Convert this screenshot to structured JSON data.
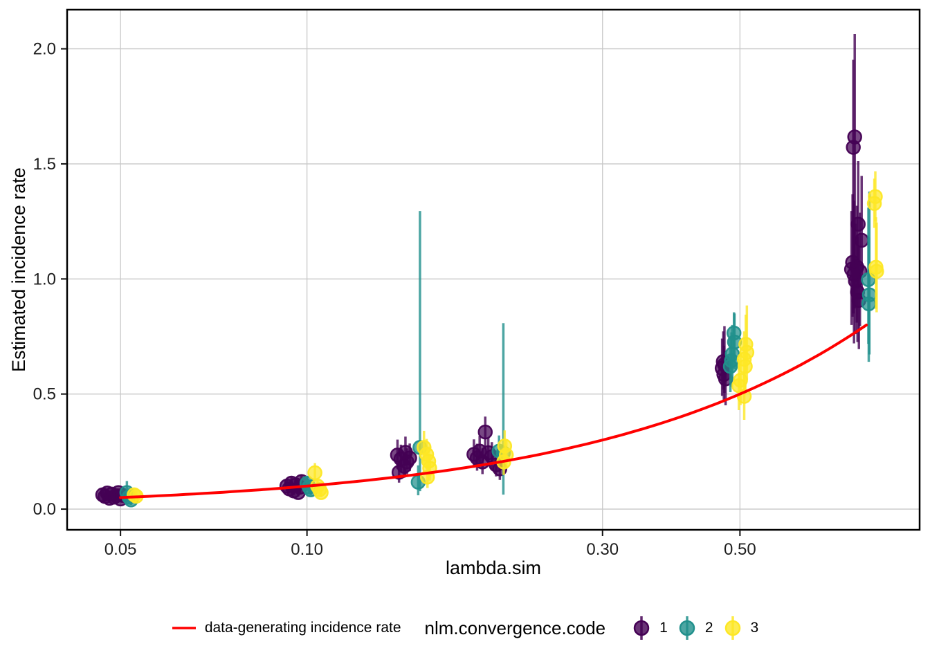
{
  "chart_data": {
    "type": "scatter",
    "subtype": "pointrange",
    "title": "",
    "xlabel": "lambda.sim",
    "ylabel": "Estimated incidence rate",
    "legend_title": "nlm.convergence.code",
    "x_scale": "log10",
    "x_domain": [
      0.041,
      0.975
    ],
    "y_domain": [
      -0.09,
      2.17
    ],
    "x_ticks": [
      0.05,
      0.1,
      0.3,
      0.5
    ],
    "x_tick_labels": [
      "0.05",
      "0.10",
      "0.30",
      "0.50"
    ],
    "y_ticks": [
      0,
      0.5,
      1,
      1.5,
      2
    ],
    "y_tick_labels": [
      "0.0",
      "0.5",
      "1.0",
      "1.5",
      "2.0"
    ],
    "grid": true,
    "legend_position": "bottom",
    "colors": {
      "background": "#ffffff",
      "grid": "#c8c8c8",
      "panel_border": "#000000",
      "axis_text": "#1d1d1d",
      "reference_line": "#ff0000"
    },
    "reference_line": {
      "label": "data-generating incidence rate",
      "color": "#ff0000",
      "relation": "identity (estimated = lambda.sim)",
      "x_start": 0.05,
      "x_end": 0.8
    },
    "lambda_groups": [
      0.05,
      0.1,
      0.15,
      0.2,
      0.5,
      0.8
    ],
    "point_format": [
      "lambda",
      "estimate",
      "ci_low",
      "ci_high"
    ],
    "series": [
      {
        "name": "1",
        "color": "#440154",
        "points": [
          [
            0.0468,
            0.062,
            0.048,
            0.078
          ],
          [
            0.0472,
            0.055,
            0.042,
            0.07
          ],
          [
            0.0476,
            0.07,
            0.055,
            0.087
          ],
          [
            0.048,
            0.047,
            0.035,
            0.061
          ],
          [
            0.0484,
            0.065,
            0.05,
            0.082
          ],
          [
            0.0488,
            0.052,
            0.04,
            0.066
          ],
          [
            0.0492,
            0.058,
            0.045,
            0.073
          ],
          [
            0.0496,
            0.072,
            0.056,
            0.09
          ],
          [
            0.05,
            0.044,
            0.033,
            0.057
          ],
          [
            0.0504,
            0.06,
            0.046,
            0.076
          ],
          [
            0.0928,
            0.1,
            0.078,
            0.126
          ],
          [
            0.0936,
            0.088,
            0.068,
            0.112
          ],
          [
            0.0944,
            0.113,
            0.089,
            0.14
          ],
          [
            0.0952,
            0.079,
            0.061,
            0.101
          ],
          [
            0.096,
            0.105,
            0.082,
            0.131
          ],
          [
            0.0968,
            0.072,
            0.055,
            0.092
          ],
          [
            0.0974,
            0.095,
            0.074,
            0.119
          ],
          [
            0.098,
            0.12,
            0.095,
            0.148
          ],
          [
            0.14,
            0.235,
            0.175,
            0.302
          ],
          [
            0.1418,
            0.218,
            0.162,
            0.28
          ],
          [
            0.1435,
            0.186,
            0.136,
            0.243
          ],
          [
            0.1408,
            0.16,
            0.115,
            0.212
          ],
          [
            0.145,
            0.205,
            0.152,
            0.264
          ],
          [
            0.1465,
            0.222,
            0.165,
            0.285
          ],
          [
            0.1442,
            0.247,
            0.186,
            0.315
          ],
          [
            0.194,
            0.335,
            0.262,
            0.402
          ],
          [
            0.186,
            0.238,
            0.18,
            0.303
          ],
          [
            0.1882,
            0.222,
            0.167,
            0.284
          ],
          [
            0.19,
            0.252,
            0.193,
            0.318
          ],
          [
            0.192,
            0.205,
            0.152,
            0.264
          ],
          [
            0.1962,
            0.245,
            0.187,
            0.31
          ],
          [
            0.1988,
            0.228,
            0.172,
            0.291
          ],
          [
            0.202,
            0.192,
            0.142,
            0.249
          ],
          [
            0.2048,
            0.175,
            0.127,
            0.23
          ],
          [
            0.47,
            0.641,
            0.519,
            0.772
          ],
          [
            0.468,
            0.612,
            0.492,
            0.741
          ],
          [
            0.471,
            0.585,
            0.468,
            0.71
          ],
          [
            0.474,
            0.566,
            0.451,
            0.688
          ],
          [
            0.472,
            0.628,
            0.505,
            0.795
          ],
          [
            0.766,
            1.617,
            0.872,
            2.065
          ],
          [
            0.762,
            1.572,
            0.85,
            1.952
          ],
          [
            0.776,
            1.238,
            0.958,
            1.512
          ],
          [
            0.786,
            1.168,
            0.912,
            1.448
          ],
          [
            0.76,
            1.072,
            0.836,
            1.368
          ],
          [
            0.772,
            1.052,
            0.81,
            1.318
          ],
          [
            0.757,
            1.042,
            0.8,
            1.295
          ],
          [
            0.781,
            1.033,
            0.795,
            1.288
          ],
          [
            0.768,
            0.991,
            0.76,
            1.24
          ],
          [
            0.774,
            0.943,
            0.726,
            1.185
          ],
          [
            0.778,
            0.907,
            0.695,
            1.145
          ],
          [
            0.764,
            1.02,
            0.72,
            1.34
          ]
        ]
      },
      {
        "name": "2",
        "color": "#21908C",
        "points": [
          [
            0.0512,
            0.072,
            0.03,
            0.122
          ],
          [
            0.0516,
            0.052,
            0.024,
            0.09
          ],
          [
            0.052,
            0.04,
            0.018,
            0.072
          ],
          [
            0.1,
            0.112,
            0.085,
            0.145
          ],
          [
            0.1008,
            0.096,
            0.071,
            0.126
          ],
          [
            0.1014,
            0.084,
            0.061,
            0.112
          ],
          [
            0.1522,
            0.268,
            0.078,
            1.295
          ],
          [
            0.1512,
            0.117,
            0.06,
            0.19
          ],
          [
            0.2075,
            0.244,
            0.063,
            0.808
          ],
          [
            0.2042,
            0.252,
            0.19,
            0.32
          ],
          [
            0.489,
            0.765,
            0.64,
            0.855
          ],
          [
            0.49,
            0.726,
            0.608,
            0.85
          ],
          [
            0.486,
            0.674,
            0.558,
            0.8
          ],
          [
            0.4845,
            0.645,
            0.532,
            0.768
          ],
          [
            0.4825,
            0.62,
            0.508,
            0.742
          ],
          [
            0.806,
            0.997,
            0.718,
            1.31
          ],
          [
            0.809,
            0.931,
            0.672,
            1.38
          ],
          [
            0.807,
            0.892,
            0.64,
            1.18
          ]
        ]
      },
      {
        "name": "3",
        "color": "#FDE725",
        "points": [
          [
            0.0526,
            0.062,
            0.042,
            0.085
          ],
          [
            0.053,
            0.056,
            0.037,
            0.078
          ],
          [
            0.103,
            0.158,
            0.12,
            0.2
          ],
          [
            0.104,
            0.1,
            0.076,
            0.128
          ],
          [
            0.1048,
            0.085,
            0.063,
            0.11
          ],
          [
            0.1054,
            0.072,
            0.052,
            0.095
          ],
          [
            0.1545,
            0.268,
            0.2,
            0.34
          ],
          [
            0.156,
            0.238,
            0.175,
            0.305
          ],
          [
            0.1572,
            0.208,
            0.15,
            0.272
          ],
          [
            0.1578,
            0.178,
            0.124,
            0.238
          ],
          [
            0.1565,
            0.139,
            0.092,
            0.192
          ],
          [
            0.2085,
            0.274,
            0.212,
            0.342
          ],
          [
            0.2098,
            0.235,
            0.176,
            0.3
          ],
          [
            0.2078,
            0.205,
            0.148,
            0.266
          ],
          [
            0.511,
            0.716,
            0.595,
            0.845
          ],
          [
            0.513,
            0.681,
            0.562,
            0.885
          ],
          [
            0.508,
            0.651,
            0.535,
            0.772
          ],
          [
            0.51,
            0.62,
            0.506,
            0.74
          ],
          [
            0.501,
            0.56,
            0.452,
            0.674
          ],
          [
            0.498,
            0.536,
            0.43,
            0.648
          ],
          [
            0.508,
            0.49,
            0.388,
            0.598
          ],
          [
            0.827,
            1.358,
            1.25,
            1.468
          ],
          [
            0.824,
            1.328,
            1.222,
            1.436
          ],
          [
            0.829,
            1.051,
            0.87,
            1.268
          ],
          [
            0.831,
            1.033,
            0.855,
            1.245
          ]
        ]
      }
    ],
    "style": {
      "point_radius": 9.5,
      "point_fill_opacity": 0.72,
      "bar_width": 3.5,
      "bar_opacity": 0.8
    }
  }
}
